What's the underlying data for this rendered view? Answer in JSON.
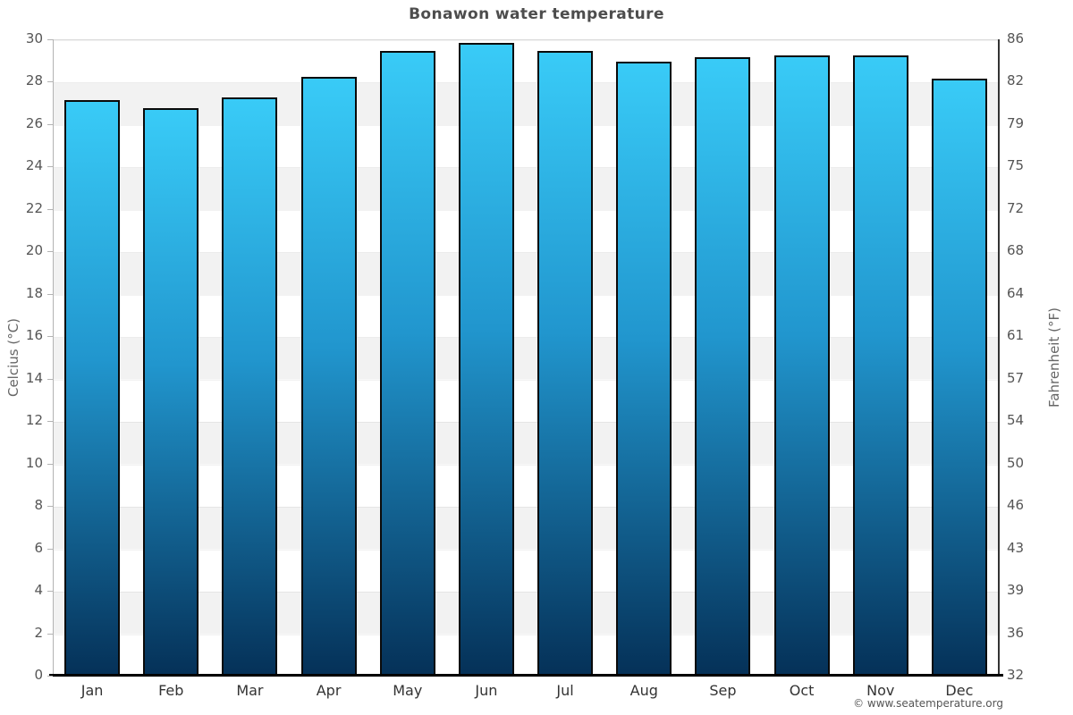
{
  "title": "Bonawon water temperature",
  "footer": "© www.seatemperature.org",
  "chart_data": {
    "type": "bar",
    "title": "Bonawon water temperature",
    "categories": [
      "Jan",
      "Feb",
      "Mar",
      "Apr",
      "May",
      "Jun",
      "Jul",
      "Aug",
      "Sep",
      "Oct",
      "Nov",
      "Dec"
    ],
    "values": [
      27.1,
      26.7,
      27.2,
      28.2,
      29.4,
      29.8,
      29.4,
      28.9,
      29.1,
      29.2,
      29.2,
      28.1
    ],
    "values_unit": "°C",
    "ylabel_left": "Celcius (°C)",
    "ylabel_right": "Fahrenheit (°F)",
    "xlabel": "",
    "ylim": [
      0,
      30
    ],
    "left_ticks": [
      30,
      28,
      26,
      24,
      22,
      20,
      18,
      16,
      14,
      12,
      10,
      8,
      6,
      4,
      2,
      0
    ],
    "right_ticks": [
      86,
      82,
      79,
      75,
      72,
      68,
      64,
      61,
      57,
      54,
      50,
      46,
      43,
      39,
      36,
      32
    ],
    "grid": "alternating horizontal bands every 2°C",
    "legend": "none",
    "colors": {
      "bar_gradient_top": "#39cbf7",
      "bar_gradient_mid": "#2196ce",
      "bar_gradient_bottom": "#053158",
      "bar_border": "#0a0a0a",
      "band_shade": "#f2f2f2",
      "title_text": "#4d4d4d",
      "tick_text": "#555555"
    }
  }
}
